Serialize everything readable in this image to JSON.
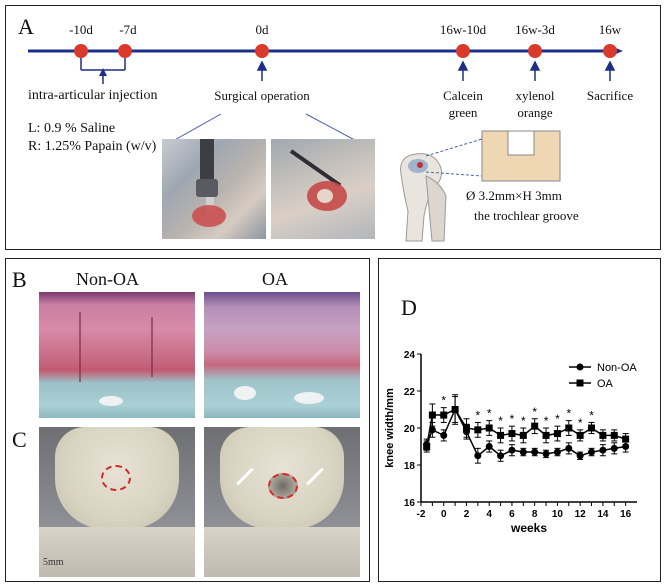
{
  "panel_a": {
    "label": "A",
    "timepoints": [
      "-10d",
      "-7d",
      "0d",
      "16w-10d",
      "16w-3d",
      "16w"
    ],
    "events": {
      "injection": "intra-articular  injection",
      "surgery": "Surgical operation",
      "calcein_line1": "Calcein",
      "calcein_line2": "green",
      "xylenol_line1": "xylenol",
      "xylenol_line2": "orange",
      "sacrifice": "Sacrifice"
    },
    "groups": {
      "left": "L: 0.9 %  Saline",
      "right": "R: 1.25% Papain (w/v)"
    },
    "defect_size": "Ø 3.2mm×H  3mm",
    "defect_site": "the trochlear groove",
    "colors": {
      "timeline": "#1c2f86",
      "marker": "#d93a2b"
    }
  },
  "panel_b": {
    "label": "B",
    "col_left": "Non-OA",
    "col_right": "OA"
  },
  "panel_c": {
    "label": "C",
    "ruler_text": "5mm"
  },
  "panel_d": {
    "label": "D"
  },
  "chart_data": {
    "type": "line",
    "xlabel": "weeks",
    "ylabel": "knee width/mm",
    "xlim": [
      -2,
      17
    ],
    "ylim": [
      16,
      24
    ],
    "xticks": [
      -2,
      -1,
      0,
      1,
      2,
      3,
      4,
      5,
      6,
      7,
      8,
      9,
      10,
      11,
      12,
      13,
      14,
      15,
      16
    ],
    "yticks": [
      16,
      18,
      20,
      22,
      24
    ],
    "legend_position": "top-right",
    "series": [
      {
        "name": "Non-OA",
        "marker": "circle",
        "x": [
          -1.5,
          -1,
          0,
          1,
          2,
          3,
          4,
          5,
          6,
          7,
          8,
          9,
          10,
          11,
          12,
          13,
          14,
          15,
          16
        ],
        "y": [
          19.1,
          19.9,
          19.6,
          21.0,
          19.8,
          18.5,
          19.0,
          18.5,
          18.8,
          18.7,
          18.7,
          18.6,
          18.7,
          18.9,
          18.5,
          18.7,
          18.8,
          18.9,
          19.0
        ],
        "err": [
          0.3,
          0.4,
          0.3,
          0.7,
          0.4,
          0.4,
          0.3,
          0.3,
          0.3,
          0.2,
          0.2,
          0.2,
          0.2,
          0.3,
          0.2,
          0.2,
          0.3,
          0.3,
          0.3
        ]
      },
      {
        "name": "OA",
        "marker": "square",
        "x": [
          -1.5,
          -1,
          0,
          1,
          2,
          3,
          4,
          5,
          6,
          7,
          8,
          9,
          10,
          11,
          12,
          13,
          14,
          15,
          16
        ],
        "y": [
          19.0,
          20.7,
          20.7,
          21.0,
          20.0,
          19.9,
          20.0,
          19.6,
          19.7,
          19.6,
          20.1,
          19.6,
          19.7,
          20.0,
          19.6,
          20.0,
          19.6,
          19.6,
          19.4
        ],
        "err": [
          0.3,
          0.6,
          0.4,
          0.8,
          0.5,
          0.4,
          0.4,
          0.4,
          0.4,
          0.4,
          0.4,
          0.4,
          0.4,
          0.4,
          0.3,
          0.3,
          0.3,
          0.3,
          0.3
        ]
      }
    ],
    "significance_marks": {
      "symbol": "*",
      "weeks": [
        0,
        3,
        4,
        5,
        6,
        7,
        8,
        9,
        10,
        11,
        12,
        13
      ]
    }
  }
}
